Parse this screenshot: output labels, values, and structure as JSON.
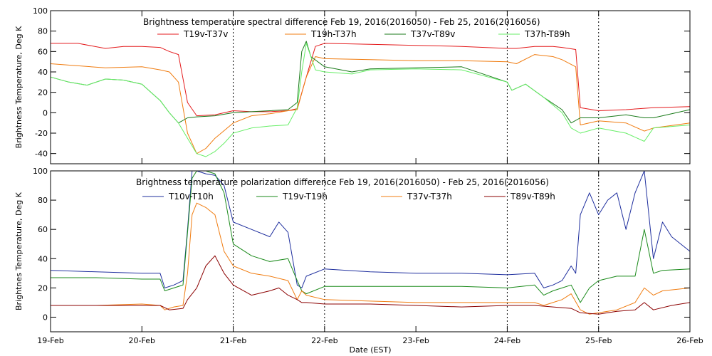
{
  "chart_data": [
    {
      "type": "line",
      "title": "Brightness temperature spectral difference     Feb 19, 2016(2016050) - Feb 25, 2016(2016056)",
      "ylabel": "Brightness Temperature, Deg K",
      "xlabel": "",
      "x_tick_labels": [],
      "ylim": [
        -50,
        100
      ],
      "y_ticks": [
        -40,
        -20,
        0,
        20,
        40,
        60,
        80,
        100
      ],
      "xlim": [
        19,
        26
      ],
      "x_gridlines": [
        21,
        22,
        24,
        25
      ],
      "legend_position": "top",
      "series": [
        {
          "name": "T19v-T37v",
          "color": "#e41a1c",
          "x": [
            19.0,
            19.3,
            19.6,
            19.8,
            20.0,
            20.2,
            20.3,
            20.4,
            20.5,
            20.6,
            20.8,
            21.0,
            21.2,
            21.4,
            21.6,
            21.7,
            21.8,
            21.9,
            22.0,
            22.5,
            23.0,
            23.5,
            24.0,
            24.1,
            24.3,
            24.5,
            24.6,
            24.75,
            24.8,
            25.0,
            25.3,
            25.6,
            26.0
          ],
          "y": [
            68,
            68,
            63,
            65,
            65,
            64,
            60,
            57,
            10,
            -3,
            -2,
            2,
            1,
            1,
            2,
            4,
            35,
            65,
            68,
            67,
            66,
            65,
            63,
            63,
            65,
            65,
            64,
            62,
            5,
            2,
            3,
            5,
            6
          ]
        },
        {
          "name": "T19h-T37h",
          "color": "#f07c10",
          "x": [
            19.0,
            19.3,
            19.6,
            20.0,
            20.2,
            20.3,
            20.4,
            20.5,
            20.6,
            20.7,
            20.8,
            21.0,
            21.2,
            21.4,
            21.6,
            21.7,
            21.8,
            21.9,
            22.0,
            22.5,
            23.0,
            23.5,
            24.0,
            24.1,
            24.3,
            24.5,
            24.6,
            24.75,
            24.8,
            25.0,
            25.3,
            25.5,
            25.6,
            26.0
          ],
          "y": [
            48,
            46,
            44,
            45,
            42,
            40,
            30,
            -20,
            -40,
            -35,
            -25,
            -10,
            -3,
            -1,
            2,
            3,
            35,
            55,
            53,
            52,
            51,
            51,
            50,
            48,
            57,
            55,
            52,
            45,
            -12,
            -8,
            -10,
            -18,
            -15,
            -10
          ]
        },
        {
          "name": "T37v-T89v",
          "color": "#1a7a1a",
          "x": [
            19.0,
            19.2,
            19.4,
            19.6,
            19.8,
            20.0,
            20.1,
            20.2,
            20.3,
            20.4,
            20.5,
            20.6,
            20.8,
            21.0,
            21.2,
            21.4,
            21.6,
            21.7,
            21.75,
            21.8,
            21.85,
            22.0,
            22.3,
            22.5,
            23.0,
            23.5,
            24.0,
            24.05,
            24.2,
            24.4,
            24.6,
            24.7,
            24.8,
            25.0,
            25.3,
            25.5,
            25.6,
            26.0
          ],
          "y": [
            35,
            30,
            27,
            33,
            32,
            28,
            20,
            12,
            0,
            -10,
            -5,
            -4,
            -3,
            0,
            1,
            2,
            3,
            10,
            60,
            70,
            55,
            45,
            40,
            43,
            44,
            45,
            30,
            22,
            28,
            15,
            3,
            -10,
            -5,
            -5,
            -2,
            -5,
            -5,
            3
          ]
        },
        {
          "name": "T37h-T89h",
          "color": "#66ee66",
          "x": [
            19.0,
            19.2,
            19.4,
            19.6,
            19.8,
            20.0,
            20.1,
            20.2,
            20.3,
            20.4,
            20.5,
            20.6,
            20.7,
            20.8,
            20.9,
            21.0,
            21.2,
            21.4,
            21.6,
            21.7,
            21.75,
            21.8,
            21.9,
            22.0,
            22.3,
            22.5,
            23.0,
            23.5,
            24.0,
            24.05,
            24.2,
            24.4,
            24.6,
            24.7,
            24.8,
            25.0,
            25.3,
            25.5,
            25.6,
            26.0
          ],
          "y": [
            35,
            30,
            27,
            33,
            32,
            28,
            20,
            12,
            0,
            -10,
            -25,
            -40,
            -43,
            -38,
            -30,
            -20,
            -15,
            -13,
            -12,
            5,
            40,
            68,
            42,
            40,
            38,
            42,
            43,
            42,
            30,
            22,
            28,
            15,
            0,
            -15,
            -20,
            -15,
            -20,
            -28,
            -15,
            -12
          ]
        }
      ]
    },
    {
      "type": "line",
      "title": "Brightness temperature polarization difference     Feb 19, 2016(2016050) - Feb 25, 2016(2016056)",
      "ylabel": "Brightnes Temperature, Deg K",
      "xlabel": "Date (EST)",
      "x_tick_labels": [
        "19-Feb",
        "20-Feb",
        "21-Feb",
        "22-Feb",
        "23-Feb",
        "24-Feb",
        "25-Feb",
        "26-Feb"
      ],
      "ylim": [
        -10,
        100
      ],
      "y_ticks": [
        0,
        20,
        40,
        60,
        80,
        100
      ],
      "xlim": [
        19,
        26
      ],
      "x_gridlines": [
        21,
        22,
        24,
        25
      ],
      "legend_position": "top",
      "series": [
        {
          "name": "T10v-T10h",
          "color": "#1f2f9e",
          "x": [
            19.0,
            19.5,
            20.0,
            20.2,
            20.25,
            20.35,
            20.45,
            20.5,
            20.55,
            20.6,
            20.7,
            20.8,
            20.9,
            21.0,
            21.2,
            21.4,
            21.5,
            21.6,
            21.7,
            21.75,
            21.8,
            22.0,
            22.5,
            23.0,
            23.5,
            24.0,
            24.3,
            24.4,
            24.5,
            24.6,
            24.7,
            24.75,
            24.8,
            24.9,
            25.0,
            25.1,
            25.2,
            25.3,
            25.4,
            25.5,
            25.6,
            25.7,
            25.8,
            26.0
          ],
          "y": [
            32,
            31,
            30,
            30,
            20,
            22,
            25,
            60,
            100,
            100,
            98,
            97,
            90,
            65,
            60,
            55,
            65,
            58,
            22,
            20,
            28,
            33,
            31,
            30,
            30,
            29,
            30,
            20,
            22,
            25,
            35,
            30,
            70,
            85,
            70,
            80,
            85,
            60,
            85,
            100,
            40,
            65,
            55,
            45
          ]
        },
        {
          "name": "T19v-T19h",
          "color": "#1a8a1a",
          "x": [
            19.0,
            19.5,
            20.0,
            20.2,
            20.25,
            20.35,
            20.45,
            20.5,
            20.55,
            20.6,
            20.7,
            20.8,
            20.9,
            21.0,
            21.2,
            21.4,
            21.6,
            21.7,
            21.75,
            21.8,
            22.0,
            22.5,
            23.0,
            23.5,
            24.0,
            24.3,
            24.4,
            24.5,
            24.6,
            24.7,
            24.8,
            24.9,
            25.0,
            25.2,
            25.4,
            25.5,
            25.6,
            25.7,
            26.0
          ],
          "y": [
            27,
            27,
            26,
            26,
            18,
            20,
            22,
            58,
            95,
            100,
            100,
            98,
            85,
            50,
            42,
            38,
            40,
            25,
            18,
            16,
            21,
            21,
            21,
            21,
            20,
            22,
            15,
            18,
            20,
            22,
            10,
            20,
            25,
            28,
            28,
            60,
            30,
            32,
            33
          ]
        },
        {
          "name": "T37v-T37h",
          "color": "#f07c10",
          "x": [
            19.0,
            19.5,
            20.0,
            20.2,
            20.25,
            20.35,
            20.45,
            20.5,
            20.55,
            20.6,
            20.7,
            20.8,
            20.9,
            21.0,
            21.2,
            21.4,
            21.6,
            21.7,
            21.75,
            21.8,
            22.0,
            22.5,
            23.0,
            23.5,
            24.0,
            24.3,
            24.4,
            24.5,
            24.6,
            24.7,
            24.8,
            24.9,
            25.0,
            25.2,
            25.4,
            25.5,
            25.6,
            25.7,
            26.0
          ],
          "y": [
            8,
            8,
            9,
            8,
            5,
            7,
            8,
            30,
            70,
            78,
            75,
            70,
            45,
            35,
            30,
            28,
            25,
            12,
            18,
            15,
            12,
            11,
            10,
            10,
            10,
            10,
            8,
            10,
            12,
            16,
            5,
            2,
            3,
            5,
            10,
            20,
            15,
            18,
            20
          ]
        },
        {
          "name": "T89v-T89h",
          "color": "#8b0000",
          "x": [
            19.0,
            19.5,
            20.0,
            20.2,
            20.3,
            20.45,
            20.5,
            20.6,
            20.7,
            20.8,
            20.9,
            21.0,
            21.2,
            21.4,
            21.5,
            21.6,
            21.7,
            21.75,
            21.8,
            22.0,
            22.5,
            23.0,
            23.5,
            24.0,
            24.3,
            24.5,
            24.7,
            24.8,
            25.0,
            25.2,
            25.4,
            25.5,
            25.6,
            25.8,
            26.0
          ],
          "y": [
            8,
            8,
            8,
            8,
            5,
            6,
            12,
            20,
            35,
            42,
            30,
            22,
            15,
            18,
            20,
            15,
            12,
            10,
            10,
            9,
            9,
            8,
            7,
            8,
            8,
            7,
            6,
            3,
            2,
            4,
            5,
            10,
            5,
            8,
            10
          ]
        }
      ]
    }
  ]
}
